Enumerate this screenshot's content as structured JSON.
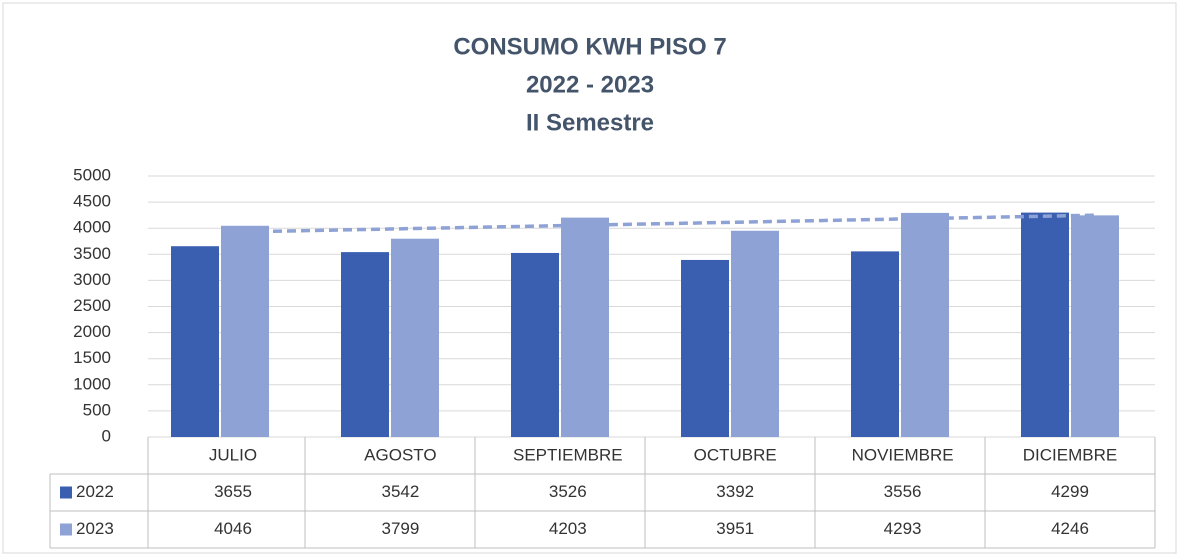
{
  "chart_data": {
    "type": "bar",
    "title": [
      "CONSUMO KWH PISO 7",
      "2022 - 2023",
      "II Semestre"
    ],
    "categories": [
      "JULIO",
      "AGOSTO",
      "SEPTIEMBRE",
      "OCTUBRE",
      "NOVIEMBRE",
      "DICIEMBRE"
    ],
    "series": [
      {
        "name": "2022",
        "color": "#3a5fb0",
        "values": [
          3655,
          3542,
          3526,
          3392,
          3556,
          4299
        ]
      },
      {
        "name": "2023",
        "color": "#8fa2d6",
        "values": [
          4046,
          3799,
          4203,
          3951,
          4293,
          4246
        ]
      }
    ],
    "ylim": [
      0,
      5000
    ],
    "yticks": [
      0,
      500,
      1000,
      1500,
      2000,
      2500,
      3000,
      3500,
      4000,
      4500,
      5000
    ],
    "grid": true,
    "trendline": "2023",
    "data_table": true
  }
}
